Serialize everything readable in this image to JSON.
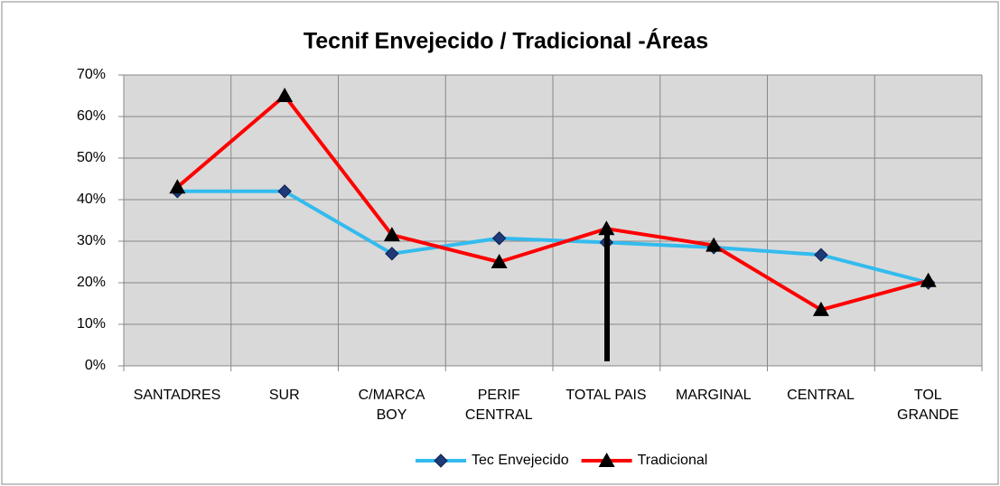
{
  "chart_data": {
    "type": "line",
    "title": "Tecnif Envejecido / Tradicional -Áreas",
    "categories": [
      "SANTADRES",
      "SUR",
      "C/MARCA\nBOY",
      "PERIF\nCENTRAL",
      "TOTAL PAIS",
      "MARGINAL",
      "CENTRAL",
      "TOL\nGRANDE"
    ],
    "series": [
      {
        "name": "Tec Envejecido",
        "color": "#33bbee",
        "marker": "diamond",
        "values": [
          42,
          42,
          27,
          30.7,
          29.7,
          28.5,
          26.7,
          20
        ]
      },
      {
        "name": "Tradicional",
        "color": "#ff0000",
        "marker": "triangle",
        "values": [
          43,
          65,
          31.5,
          25,
          33,
          29,
          13.5,
          20.5
        ]
      }
    ],
    "ylim": [
      0,
      70
    ],
    "yticks": [
      {
        "value": 0,
        "label": "0%"
      },
      {
        "value": 10,
        "label": "10%"
      },
      {
        "value": 20,
        "label": "20%"
      },
      {
        "value": 30,
        "label": "30%"
      },
      {
        "value": 40,
        "label": "40%"
      },
      {
        "value": 50,
        "label": "50%"
      },
      {
        "value": 60,
        "label": "60%"
      },
      {
        "value": 70,
        "label": "70%"
      }
    ],
    "grid": true,
    "legend": "bottom"
  }
}
